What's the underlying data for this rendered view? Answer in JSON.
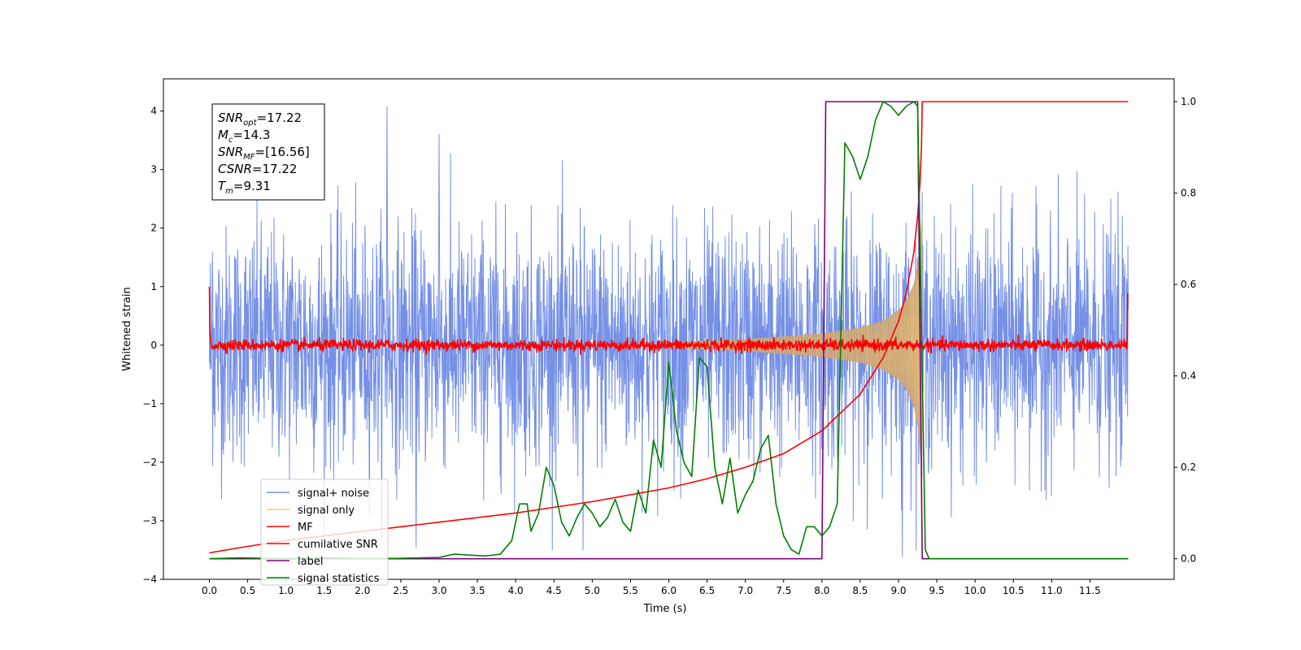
{
  "chart_data": {
    "type": "line",
    "xlabel": "Time (s)",
    "ylabel": "Whitened strain",
    "xlim": [
      -0.6,
      12.6
    ],
    "ylim_left": [
      -4.0,
      4.55
    ],
    "ylim_right": [
      -0.045,
      1.05
    ],
    "x_ticks": [
      0.0,
      0.5,
      1.0,
      1.5,
      2.0,
      2.5,
      3.0,
      3.5,
      4.0,
      4.5,
      5.0,
      5.5,
      6.0,
      6.5,
      7.0,
      7.5,
      8.0,
      8.5,
      9.0,
      9.5,
      10.0,
      10.5,
      11.0,
      11.5
    ],
    "x_tick_labels": [
      "0.0",
      "0.5",
      "1.0",
      "1.5",
      "2.0",
      "2.5",
      "3.0",
      "3.5",
      "4.0",
      "4.5",
      "5.0",
      "5.5",
      "6.0",
      "6.5",
      "7.0",
      "7.5",
      "8.0",
      "8.5",
      "9.0",
      "9.5",
      "10.0",
      "10.5",
      "11.0",
      "11.5"
    ],
    "y_left_ticks": [
      -4,
      -3,
      -2,
      -1,
      0,
      1,
      2,
      3,
      4
    ],
    "y_left_tick_labels": [
      "−4",
      "−3",
      "−2",
      "−1",
      "0",
      "1",
      "2",
      "3",
      "4"
    ],
    "y_right_ticks": [
      0.0,
      0.2,
      0.4,
      0.6,
      0.8,
      1.0
    ],
    "y_right_tick_labels": [
      "0.0",
      "0.2",
      "0.4",
      "0.6",
      "0.8",
      "1.0"
    ],
    "legend": {
      "placement": "lower-left",
      "entries": [
        {
          "label": "signal+ noise",
          "color": "#7590e6"
        },
        {
          "label": "signal only",
          "color": "#f5c56a"
        },
        {
          "label": "MF",
          "color": "#ff0000"
        },
        {
          "label": "cumilative SNR",
          "color": "#ff0000"
        },
        {
          "label": "label",
          "color": "#800080"
        },
        {
          "label": "signal statistics",
          "color": "#008000"
        }
      ]
    },
    "info_box": {
      "placement": "top-left",
      "lines": [
        {
          "base": "SNR",
          "sub": "opt",
          "value": "=17.22"
        },
        {
          "base": "M",
          "sub": "c",
          "value": "=14.3"
        },
        {
          "base": "SNR",
          "sub": "MF",
          "value": "=[16.56]"
        },
        {
          "base": "CSNR",
          "sub": "",
          "value": "=17.22"
        },
        {
          "base": "T",
          "sub": "m",
          "value": "=9.31"
        }
      ]
    },
    "series": [
      {
        "name": "signal+ noise",
        "axis": "left",
        "color": "#7590e6",
        "kind": "noise",
        "x_range": [
          0.0,
          12.0
        ],
        "sigma": 1.0,
        "notable_peaks": [
          [
            2.32,
            4.08
          ],
          [
            0.04,
            1.58
          ],
          [
            9.05,
            -3.62
          ],
          [
            3.0,
            3.6
          ],
          [
            2.7,
            -3.45
          ],
          [
            4.88,
            -3.5
          ]
        ]
      },
      {
        "name": "signal only",
        "axis": "left",
        "color": "#f5c56a",
        "kind": "chirp_envelope",
        "x": [
          6.0,
          7.0,
          7.5,
          8.0,
          8.5,
          8.8,
          9.0,
          9.1,
          9.2,
          9.25,
          9.28,
          9.31
        ],
        "amplitude": [
          0.05,
          0.1,
          0.15,
          0.2,
          0.3,
          0.42,
          0.6,
          0.75,
          1.05,
          1.4,
          1.8,
          2.3
        ]
      },
      {
        "name": "MF",
        "axis": "left",
        "color": "#ff0000",
        "kind": "matched_filter",
        "x_range": [
          0.0,
          12.0
        ],
        "start_value": 1.0,
        "end_value": 0.88,
        "baseline_noise": 0.05
      },
      {
        "name": "cumilative SNR",
        "axis": "right",
        "color": "#ff0000",
        "x": [
          0.0,
          0.5,
          1.0,
          2.0,
          3.0,
          4.0,
          5.0,
          6.0,
          6.5,
          7.0,
          7.5,
          8.0,
          8.5,
          8.8,
          9.0,
          9.1,
          9.2,
          9.25,
          9.28,
          9.3,
          9.31,
          10.0,
          12.0
        ],
        "y": [
          0.013,
          0.027,
          0.04,
          0.06,
          0.08,
          0.1,
          0.125,
          0.155,
          0.175,
          0.2,
          0.23,
          0.28,
          0.36,
          0.44,
          0.52,
          0.58,
          0.67,
          0.75,
          0.82,
          0.9,
          1.0,
          1.0,
          1.0
        ]
      },
      {
        "name": "label",
        "axis": "right",
        "color": "#800080",
        "x": [
          0.0,
          8.0,
          8.05,
          9.25,
          9.31,
          12.0
        ],
        "y": [
          0.0,
          0.0,
          1.0,
          1.0,
          0.0,
          0.0
        ]
      },
      {
        "name": "signal statistics",
        "axis": "right",
        "color": "#008000",
        "x": [
          0.0,
          0.4,
          1.0,
          1.5,
          2.0,
          2.5,
          3.0,
          3.2,
          3.4,
          3.6,
          3.8,
          3.95,
          4.05,
          4.15,
          4.2,
          4.3,
          4.4,
          4.5,
          4.6,
          4.7,
          4.8,
          4.9,
          5.0,
          5.1,
          5.2,
          5.3,
          5.4,
          5.5,
          5.6,
          5.7,
          5.8,
          5.9,
          6.0,
          6.1,
          6.2,
          6.3,
          6.4,
          6.5,
          6.6,
          6.7,
          6.8,
          6.9,
          7.0,
          7.1,
          7.2,
          7.3,
          7.4,
          7.5,
          7.6,
          7.7,
          7.8,
          7.9,
          8.0,
          8.1,
          8.2,
          8.3,
          8.4,
          8.5,
          8.6,
          8.7,
          8.8,
          8.9,
          9.0,
          9.1,
          9.2,
          9.25,
          9.3,
          9.35,
          9.4,
          10.0,
          11.0,
          12.0
        ],
        "y": [
          0.0,
          0.002,
          0.0,
          0.002,
          0.0,
          0.001,
          0.003,
          0.01,
          0.008,
          0.006,
          0.01,
          0.04,
          0.12,
          0.12,
          0.06,
          0.1,
          0.2,
          0.16,
          0.08,
          0.05,
          0.09,
          0.12,
          0.1,
          0.07,
          0.09,
          0.13,
          0.08,
          0.06,
          0.15,
          0.1,
          0.26,
          0.2,
          0.43,
          0.28,
          0.21,
          0.18,
          0.44,
          0.42,
          0.2,
          0.12,
          0.22,
          0.1,
          0.14,
          0.17,
          0.24,
          0.27,
          0.12,
          0.05,
          0.02,
          0.01,
          0.07,
          0.07,
          0.05,
          0.07,
          0.12,
          0.91,
          0.88,
          0.83,
          0.88,
          0.96,
          1.0,
          0.99,
          0.97,
          0.99,
          1.0,
          0.99,
          0.5,
          0.02,
          0.0,
          0.0,
          0.0,
          0.0
        ]
      }
    ]
  }
}
